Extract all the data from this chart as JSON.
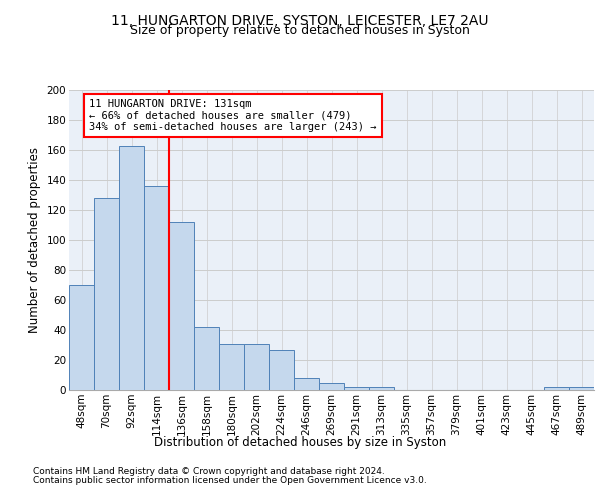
{
  "title1": "11, HUNGARTON DRIVE, SYSTON, LEICESTER, LE7 2AU",
  "title2": "Size of property relative to detached houses in Syston",
  "xlabel": "Distribution of detached houses by size in Syston",
  "ylabel": "Number of detached properties",
  "footer1": "Contains HM Land Registry data © Crown copyright and database right 2024.",
  "footer2": "Contains public sector information licensed under the Open Government Licence v3.0.",
  "bar_labels": [
    "48sqm",
    "70sqm",
    "92sqm",
    "114sqm",
    "136sqm",
    "158sqm",
    "180sqm",
    "202sqm",
    "224sqm",
    "246sqm",
    "269sqm",
    "291sqm",
    "313sqm",
    "335sqm",
    "357sqm",
    "379sqm",
    "401sqm",
    "423sqm",
    "445sqm",
    "467sqm",
    "489sqm"
  ],
  "bar_values": [
    70,
    128,
    163,
    136,
    112,
    42,
    31,
    31,
    27,
    8,
    5,
    2,
    2,
    0,
    0,
    0,
    0,
    0,
    0,
    2,
    2
  ],
  "bar_color": "#c5d8ed",
  "bar_edge_color": "#4f81b8",
  "vline_color": "red",
  "vline_x_index": 3.5,
  "annotation_text": "11 HUNGARTON DRIVE: 131sqm\n← 66% of detached houses are smaller (479)\n34% of semi-detached houses are larger (243) →",
  "annotation_box_color": "white",
  "annotation_box_edge_color": "red",
  "ylim": [
    0,
    200
  ],
  "yticks": [
    0,
    20,
    40,
    60,
    80,
    100,
    120,
    140,
    160,
    180,
    200
  ],
  "grid_color": "#cccccc",
  "bg_color": "#eaf0f8",
  "title1_fontsize": 10,
  "title2_fontsize": 9,
  "axis_label_fontsize": 8.5,
  "tick_fontsize": 7.5,
  "footer_fontsize": 6.5,
  "annotation_fontsize": 7.5
}
